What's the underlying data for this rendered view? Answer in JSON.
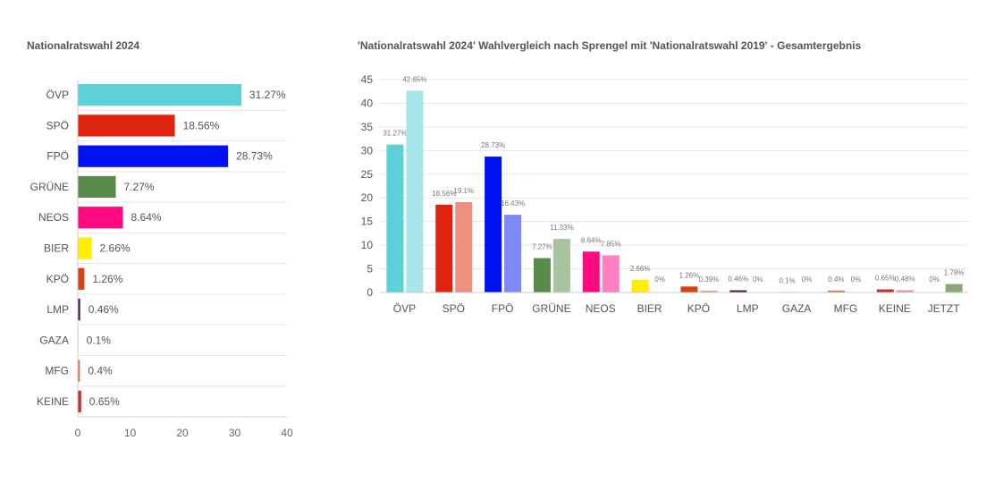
{
  "chart_data": [
    {
      "type": "bar",
      "orientation": "horizontal",
      "title": "Nationalratswahl 2024",
      "categories": [
        "ÖVP",
        "SPÖ",
        "FPÖ",
        "GRÜNE",
        "NEOS",
        "BIER",
        "KPÖ",
        "LMP",
        "GAZA",
        "MFG",
        "KEINE"
      ],
      "values": [
        31.27,
        18.56,
        28.73,
        7.27,
        8.64,
        2.66,
        1.26,
        0.46,
        0.1,
        0.4,
        0.65
      ],
      "data_labels": [
        "31.27%",
        "18.56%",
        "28.73%",
        "7.27%",
        "8.64%",
        "2.66%",
        "1.26%",
        "0.46%",
        "0.1%",
        "0.4%",
        "0.65%"
      ],
      "colors": [
        "#5dd0d8",
        "#e0230e",
        "#0012f0",
        "#588a4a",
        "#ff0a80",
        "#ffee00",
        "#d44210",
        "#4a1a4a",
        "#3a7a3a",
        "#e07050",
        "#cc2a2a"
      ],
      "xlim": [
        0,
        40
      ],
      "xticks": [
        "0",
        "10",
        "20",
        "30",
        "40"
      ],
      "grid": true
    },
    {
      "type": "bar",
      "title": "'Nationalratswahl 2024' Wahlvergleich nach Sprengel mit 'Nationalratswahl 2019' - Gesamtergebnis",
      "categories": [
        "ÖVP",
        "SPÖ",
        "FPÖ",
        "GRÜNE",
        "NEOS",
        "BIER",
        "KPÖ",
        "LMP",
        "GAZA",
        "MFG",
        "KEINE",
        "JETZT"
      ],
      "series": [
        {
          "values": [
            31.27,
            18.56,
            28.73,
            7.27,
            8.64,
            2.66,
            1.26,
            0.46,
            0.1,
            0.4,
            0.65,
            0
          ],
          "data_labels": [
            "31.27%",
            "18.56%",
            "28.73%",
            "7.27%",
            "8.64%",
            "2.66%",
            "1.26%",
            "0.46%",
            "0.1%",
            "0.4%",
            "0.65%",
            "0%"
          ],
          "colors": [
            "#5dd0d8",
            "#e0230e",
            "#0012f0",
            "#588a4a",
            "#ff0a80",
            "#ffee00",
            "#d44210",
            "#4a1a4a",
            "#3a7a3a",
            "#e07050",
            "#cc2a2a",
            "#7a9a6a"
          ]
        },
        {
          "values": [
            42.65,
            19.1,
            16.43,
            11.33,
            7.85,
            0,
            0.39,
            0,
            0,
            0,
            0.48,
            1.78
          ],
          "data_labels": [
            "42.65%",
            "19.1%",
            "16.43%",
            "11.33%",
            "7.85%",
            "0%",
            "0.39%",
            "0%",
            "0%",
            "0%",
            "0.48%",
            "1.78%"
          ],
          "colors": [
            "#a9e6ea",
            "#ee9080",
            "#8088f5",
            "#a8c49f",
            "#ff80bf",
            "#fff580",
            "#e8a08a",
            "#a08aa0",
            "#9abd9a",
            "#efb0a0",
            "#e09a9a",
            "#8aa878"
          ]
        }
      ],
      "ylim": [
        0,
        45
      ],
      "yticks": [
        "0",
        "5",
        "10",
        "15",
        "20",
        "25",
        "30",
        "35",
        "40",
        "45"
      ],
      "grid": true
    }
  ]
}
